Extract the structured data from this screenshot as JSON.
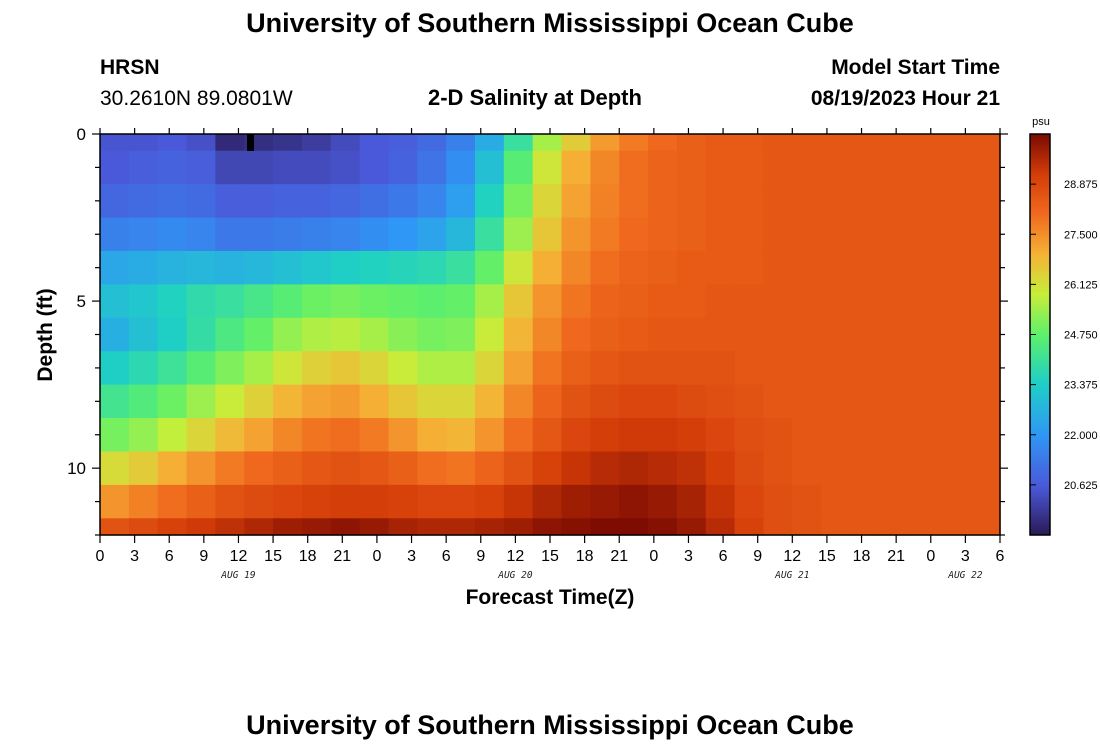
{
  "header": {
    "title": "University of Southern Mississippi Ocean Cube",
    "station": "HRSN",
    "coords": "30.2610N  89.0801W",
    "subtitle": "2-D Salinity at Depth",
    "start_label": "Model Start Time",
    "start_value": "08/19/2023 Hour 21"
  },
  "footer": {
    "title": "University of Southern Mississippi Ocean Cube"
  },
  "chart_data": {
    "type": "heatmap",
    "title": "2-D Salinity at Depth",
    "xlabel": "Forecast Time(Z)",
    "ylabel": "Depth (ft)",
    "x_start": "2023-08-19 00Z",
    "x_ticks": [
      "0",
      "3",
      "6",
      "9",
      "12",
      "15",
      "18",
      "21",
      "0",
      "3",
      "6",
      "9",
      "12",
      "15",
      "18",
      "21",
      "0",
      "3",
      "6",
      "9",
      "12",
      "15",
      "18",
      "21",
      "0",
      "3",
      "6"
    ],
    "date_labels": [
      {
        "label": "AUG 19",
        "hour": 12
      },
      {
        "label": "AUG 20",
        "hour": 36
      },
      {
        "label": "AUG 21",
        "hour": 60
      },
      {
        "label": "AUG 22",
        "hour": 75
      }
    ],
    "xlim": [
      "2023-08-19 00Z",
      "2023-08-22 06Z"
    ],
    "y_ticks": [
      "0",
      "5",
      "10"
    ],
    "ylim": [
      0,
      12
    ],
    "colorbar": {
      "unit": "psu",
      "min": 19.25,
      "max": 30.25,
      "ticks": [
        "20.625",
        "22.000",
        "23.375",
        "24.750",
        "26.125",
        "27.500",
        "28.875"
      ]
    },
    "layers": [
      {
        "depth_range": [
          0,
          0.5
        ],
        "values": [
          20.5,
          20.5,
          20.6,
          20.4,
          19.6,
          19.7,
          19.8,
          20.0,
          20.3,
          20.6,
          20.7,
          21.0,
          21.5,
          22.5,
          24.0,
          25.5,
          26.5,
          27.3,
          27.8,
          28.1,
          28.3,
          28.4,
          28.4,
          28.5,
          28.5,
          28.5,
          28.5,
          28.5,
          28.5,
          28.5,
          28.5,
          28.5
        ]
      },
      {
        "depth_range": [
          0.5,
          1.5
        ],
        "values": [
          20.6,
          20.7,
          20.8,
          20.7,
          20.2,
          20.2,
          20.3,
          20.3,
          20.4,
          20.6,
          20.8,
          21.2,
          21.8,
          23.0,
          24.6,
          26.0,
          27.0,
          27.6,
          28.0,
          28.2,
          28.3,
          28.4,
          28.4,
          28.5,
          28.5,
          28.5,
          28.5,
          28.5,
          28.5,
          28.5,
          28.5,
          28.5
        ]
      },
      {
        "depth_range": [
          1.5,
          2.5
        ],
        "values": [
          20.9,
          21.0,
          21.1,
          21.0,
          20.7,
          20.7,
          20.8,
          20.8,
          20.9,
          21.1,
          21.3,
          21.6,
          22.2,
          23.5,
          25.0,
          26.3,
          27.2,
          27.7,
          28.0,
          28.2,
          28.3,
          28.4,
          28.4,
          28.5,
          28.5,
          28.5,
          28.5,
          28.5,
          28.5,
          28.5,
          28.5,
          28.5
        ]
      },
      {
        "depth_range": [
          2.5,
          3.5
        ],
        "values": [
          21.5,
          21.6,
          21.7,
          21.6,
          21.3,
          21.3,
          21.4,
          21.5,
          21.6,
          21.8,
          22.0,
          22.3,
          22.8,
          24.0,
          25.4,
          26.6,
          27.4,
          27.8,
          28.1,
          28.2,
          28.3,
          28.4,
          28.4,
          28.5,
          28.5,
          28.5,
          28.5,
          28.5,
          28.5,
          28.5,
          28.5,
          28.5
        ]
      },
      {
        "depth_range": [
          3.5,
          4.5
        ],
        "values": [
          22.4,
          22.5,
          22.7,
          22.8,
          22.7,
          22.8,
          23.0,
          23.2,
          23.4,
          23.5,
          23.6,
          23.7,
          24.0,
          24.8,
          26.0,
          27.0,
          27.6,
          28.0,
          28.2,
          28.3,
          28.4,
          28.4,
          28.4,
          28.5,
          28.5,
          28.5,
          28.5,
          28.5,
          28.5,
          28.5,
          28.5,
          28.5
        ]
      },
      {
        "depth_range": [
          4.5,
          5.5
        ],
        "values": [
          23.0,
          23.2,
          23.5,
          23.8,
          24.0,
          24.3,
          24.6,
          24.9,
          25.0,
          24.9,
          24.8,
          24.7,
          24.8,
          25.5,
          26.6,
          27.4,
          27.9,
          28.2,
          28.3,
          28.4,
          28.4,
          28.5,
          28.5,
          28.5,
          28.5,
          28.5,
          28.5,
          28.5,
          28.5,
          28.5,
          28.5,
          28.5
        ]
      },
      {
        "depth_range": [
          5.5,
          6.5
        ],
        "values": [
          22.6,
          23.0,
          23.4,
          23.9,
          24.4,
          24.8,
          25.3,
          25.6,
          25.7,
          25.5,
          25.2,
          25.0,
          25.1,
          25.9,
          26.9,
          27.6,
          28.1,
          28.3,
          28.4,
          28.5,
          28.5,
          28.5,
          28.5,
          28.5,
          28.5,
          28.5,
          28.5,
          28.5,
          28.5,
          28.5,
          28.5,
          28.5
        ]
      },
      {
        "depth_range": [
          6.5,
          7.5
        ],
        "values": [
          23.4,
          23.7,
          24.1,
          24.6,
          25.1,
          25.5,
          26.0,
          26.4,
          26.6,
          26.3,
          25.9,
          25.6,
          25.6,
          26.3,
          27.2,
          27.9,
          28.3,
          28.5,
          28.6,
          28.6,
          28.6,
          28.6,
          28.5,
          28.5,
          28.5,
          28.5,
          28.5,
          28.5,
          28.5,
          28.5,
          28.5,
          28.5
        ]
      },
      {
        "depth_range": [
          7.5,
          8.5
        ],
        "values": [
          24.2,
          24.5,
          24.9,
          25.4,
          25.9,
          26.4,
          26.9,
          27.2,
          27.3,
          27.0,
          26.6,
          26.3,
          26.3,
          26.9,
          27.6,
          28.2,
          28.6,
          28.8,
          28.9,
          28.9,
          28.8,
          28.7,
          28.6,
          28.5,
          28.5,
          28.5,
          28.5,
          28.5,
          28.5,
          28.5,
          28.5,
          28.5
        ]
      },
      {
        "depth_range": [
          8.5,
          9.5
        ],
        "values": [
          25.0,
          25.3,
          25.8,
          26.3,
          26.8,
          27.2,
          27.6,
          27.9,
          28.0,
          27.8,
          27.4,
          27.0,
          26.9,
          27.4,
          28.0,
          28.5,
          28.9,
          29.1,
          29.2,
          29.2,
          29.1,
          28.9,
          28.7,
          28.6,
          28.5,
          28.5,
          28.5,
          28.5,
          28.5,
          28.5,
          28.5,
          28.5
        ]
      },
      {
        "depth_range": [
          9.5,
          10.5
        ],
        "values": [
          26.2,
          26.5,
          27.0,
          27.4,
          27.8,
          28.1,
          28.3,
          28.5,
          28.6,
          28.5,
          28.3,
          28.0,
          27.9,
          28.2,
          28.6,
          29.0,
          29.3,
          29.5,
          29.6,
          29.5,
          29.4,
          29.1,
          28.8,
          28.6,
          28.5,
          28.5,
          28.5,
          28.5,
          28.5,
          28.5,
          28.5,
          28.5
        ]
      },
      {
        "depth_range": [
          10.5,
          11.5
        ],
        "values": [
          27.4,
          27.7,
          28.0,
          28.3,
          28.6,
          28.8,
          28.9,
          29.0,
          29.1,
          29.1,
          29.0,
          28.9,
          28.9,
          29.0,
          29.3,
          29.6,
          29.8,
          29.9,
          30.0,
          29.9,
          29.7,
          29.3,
          28.9,
          28.7,
          28.6,
          28.5,
          28.5,
          28.5,
          28.5,
          28.5,
          28.5,
          28.5
        ]
      },
      {
        "depth_range": [
          11.5,
          12
        ],
        "values": [
          28.6,
          28.8,
          29.0,
          29.2,
          29.4,
          29.6,
          29.8,
          29.9,
          30.0,
          29.9,
          29.7,
          29.6,
          29.6,
          29.7,
          29.8,
          30.0,
          30.1,
          30.2,
          30.2,
          30.1,
          29.9,
          29.5,
          29.0,
          28.7,
          28.6,
          28.5,
          28.5,
          28.5,
          28.5,
          28.5,
          28.5,
          28.5
        ]
      }
    ],
    "column_hours": [
      0,
      2.5,
      5,
      7.5,
      10,
      12.5,
      15,
      17.5,
      20,
      22.5,
      25,
      27.5,
      30,
      32.5,
      35,
      37.5,
      40,
      42.5,
      45,
      47.5,
      50,
      52.5,
      55,
      57.5,
      60,
      62.5,
      65,
      67.5,
      70,
      72.5,
      75,
      78
    ],
    "point_anomalies": [
      {
        "hour": 13,
        "depth": 0.25,
        "value": 19.25
      }
    ]
  }
}
